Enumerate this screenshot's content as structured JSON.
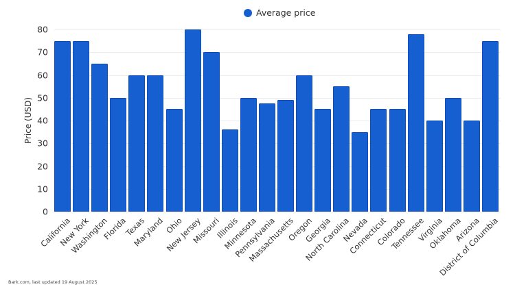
{
  "legend": {
    "label": "Average price",
    "color": "#155fd0"
  },
  "footer": {
    "text": "Bark.com, last updated 19 August 2025"
  },
  "chart_data": {
    "type": "bar",
    "title": "",
    "xlabel": "",
    "ylabel": "Price (USD)",
    "ylim": [
      0,
      80
    ],
    "yticks": [
      0,
      10,
      20,
      30,
      40,
      50,
      60,
      70,
      80
    ],
    "grid": true,
    "legend_position": "top",
    "categories": [
      "California",
      "New York",
      "Washington",
      "Florida",
      "Texas",
      "Maryland",
      "Ohio",
      "New Jersey",
      "Missouri",
      "Illinois",
      "Minnesota",
      "Pennsylvania",
      "Massachusetts",
      "Oregon",
      "Georgia",
      "North Carolina",
      "Nevada",
      "Connecticut",
      "Colorado",
      "Tennessee",
      "Virginia",
      "Oklahoma",
      "Arizona",
      "District of Columbia"
    ],
    "series": [
      {
        "name": "Average price",
        "color": "#155fd0",
        "values": [
          75,
          75,
          65,
          50,
          60,
          60,
          45,
          80,
          70,
          36,
          50,
          47.5,
          49,
          60,
          45,
          55,
          35,
          45,
          45,
          78,
          40,
          50,
          40,
          75
        ]
      }
    ]
  }
}
